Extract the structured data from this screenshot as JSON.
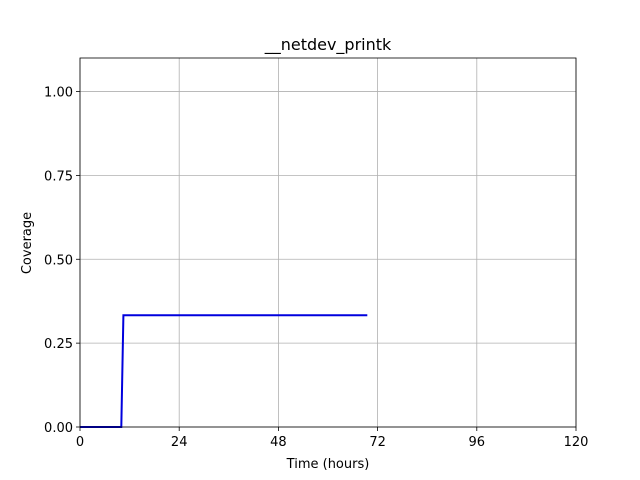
{
  "chart_data": {
    "type": "line",
    "title": "__netdev_printk",
    "xlabel": "Time (hours)",
    "ylabel": "Coverage",
    "xlim": [
      0,
      120
    ],
    "ylim": [
      0,
      1.1
    ],
    "xticks": [
      0,
      24,
      48,
      72,
      96,
      120
    ],
    "xtick_labels": [
      "0",
      "24",
      "48",
      "72",
      "96",
      "120"
    ],
    "yticks": [
      0,
      0.25,
      0.5,
      0.75,
      1.0
    ],
    "ytick_labels": [
      "0.00",
      "0.25",
      "0.50",
      "0.75",
      "1.00"
    ],
    "grid": true,
    "series": [
      {
        "color": "#0000dd",
        "x": [
          0,
          10,
          10.5,
          69.5
        ],
        "y": [
          0,
          0,
          0.333,
          0.333
        ]
      }
    ]
  }
}
